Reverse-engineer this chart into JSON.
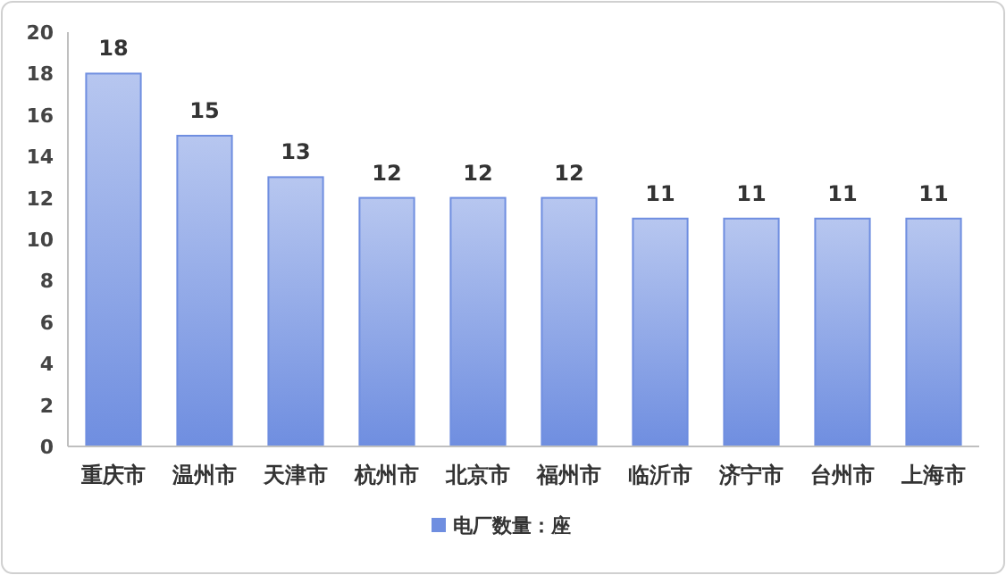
{
  "chart_data": {
    "type": "bar",
    "categories": [
      "重庆市",
      "温州市",
      "天津市",
      "杭州市",
      "北京市",
      "福州市",
      "临沂市",
      "济宁市",
      "台州市",
      "上海市"
    ],
    "series": [
      {
        "name": "电厂数量：座",
        "color": "#6f8ee0",
        "values": [
          18,
          15,
          13,
          12,
          12,
          12,
          11,
          11,
          11,
          11
        ]
      }
    ],
    "ylim": [
      0,
      20
    ],
    "yticks": [
      0,
      2,
      4,
      6,
      8,
      10,
      12,
      14,
      16,
      18,
      20
    ],
    "data_labels": true,
    "legend": "bottom",
    "grid": false
  }
}
